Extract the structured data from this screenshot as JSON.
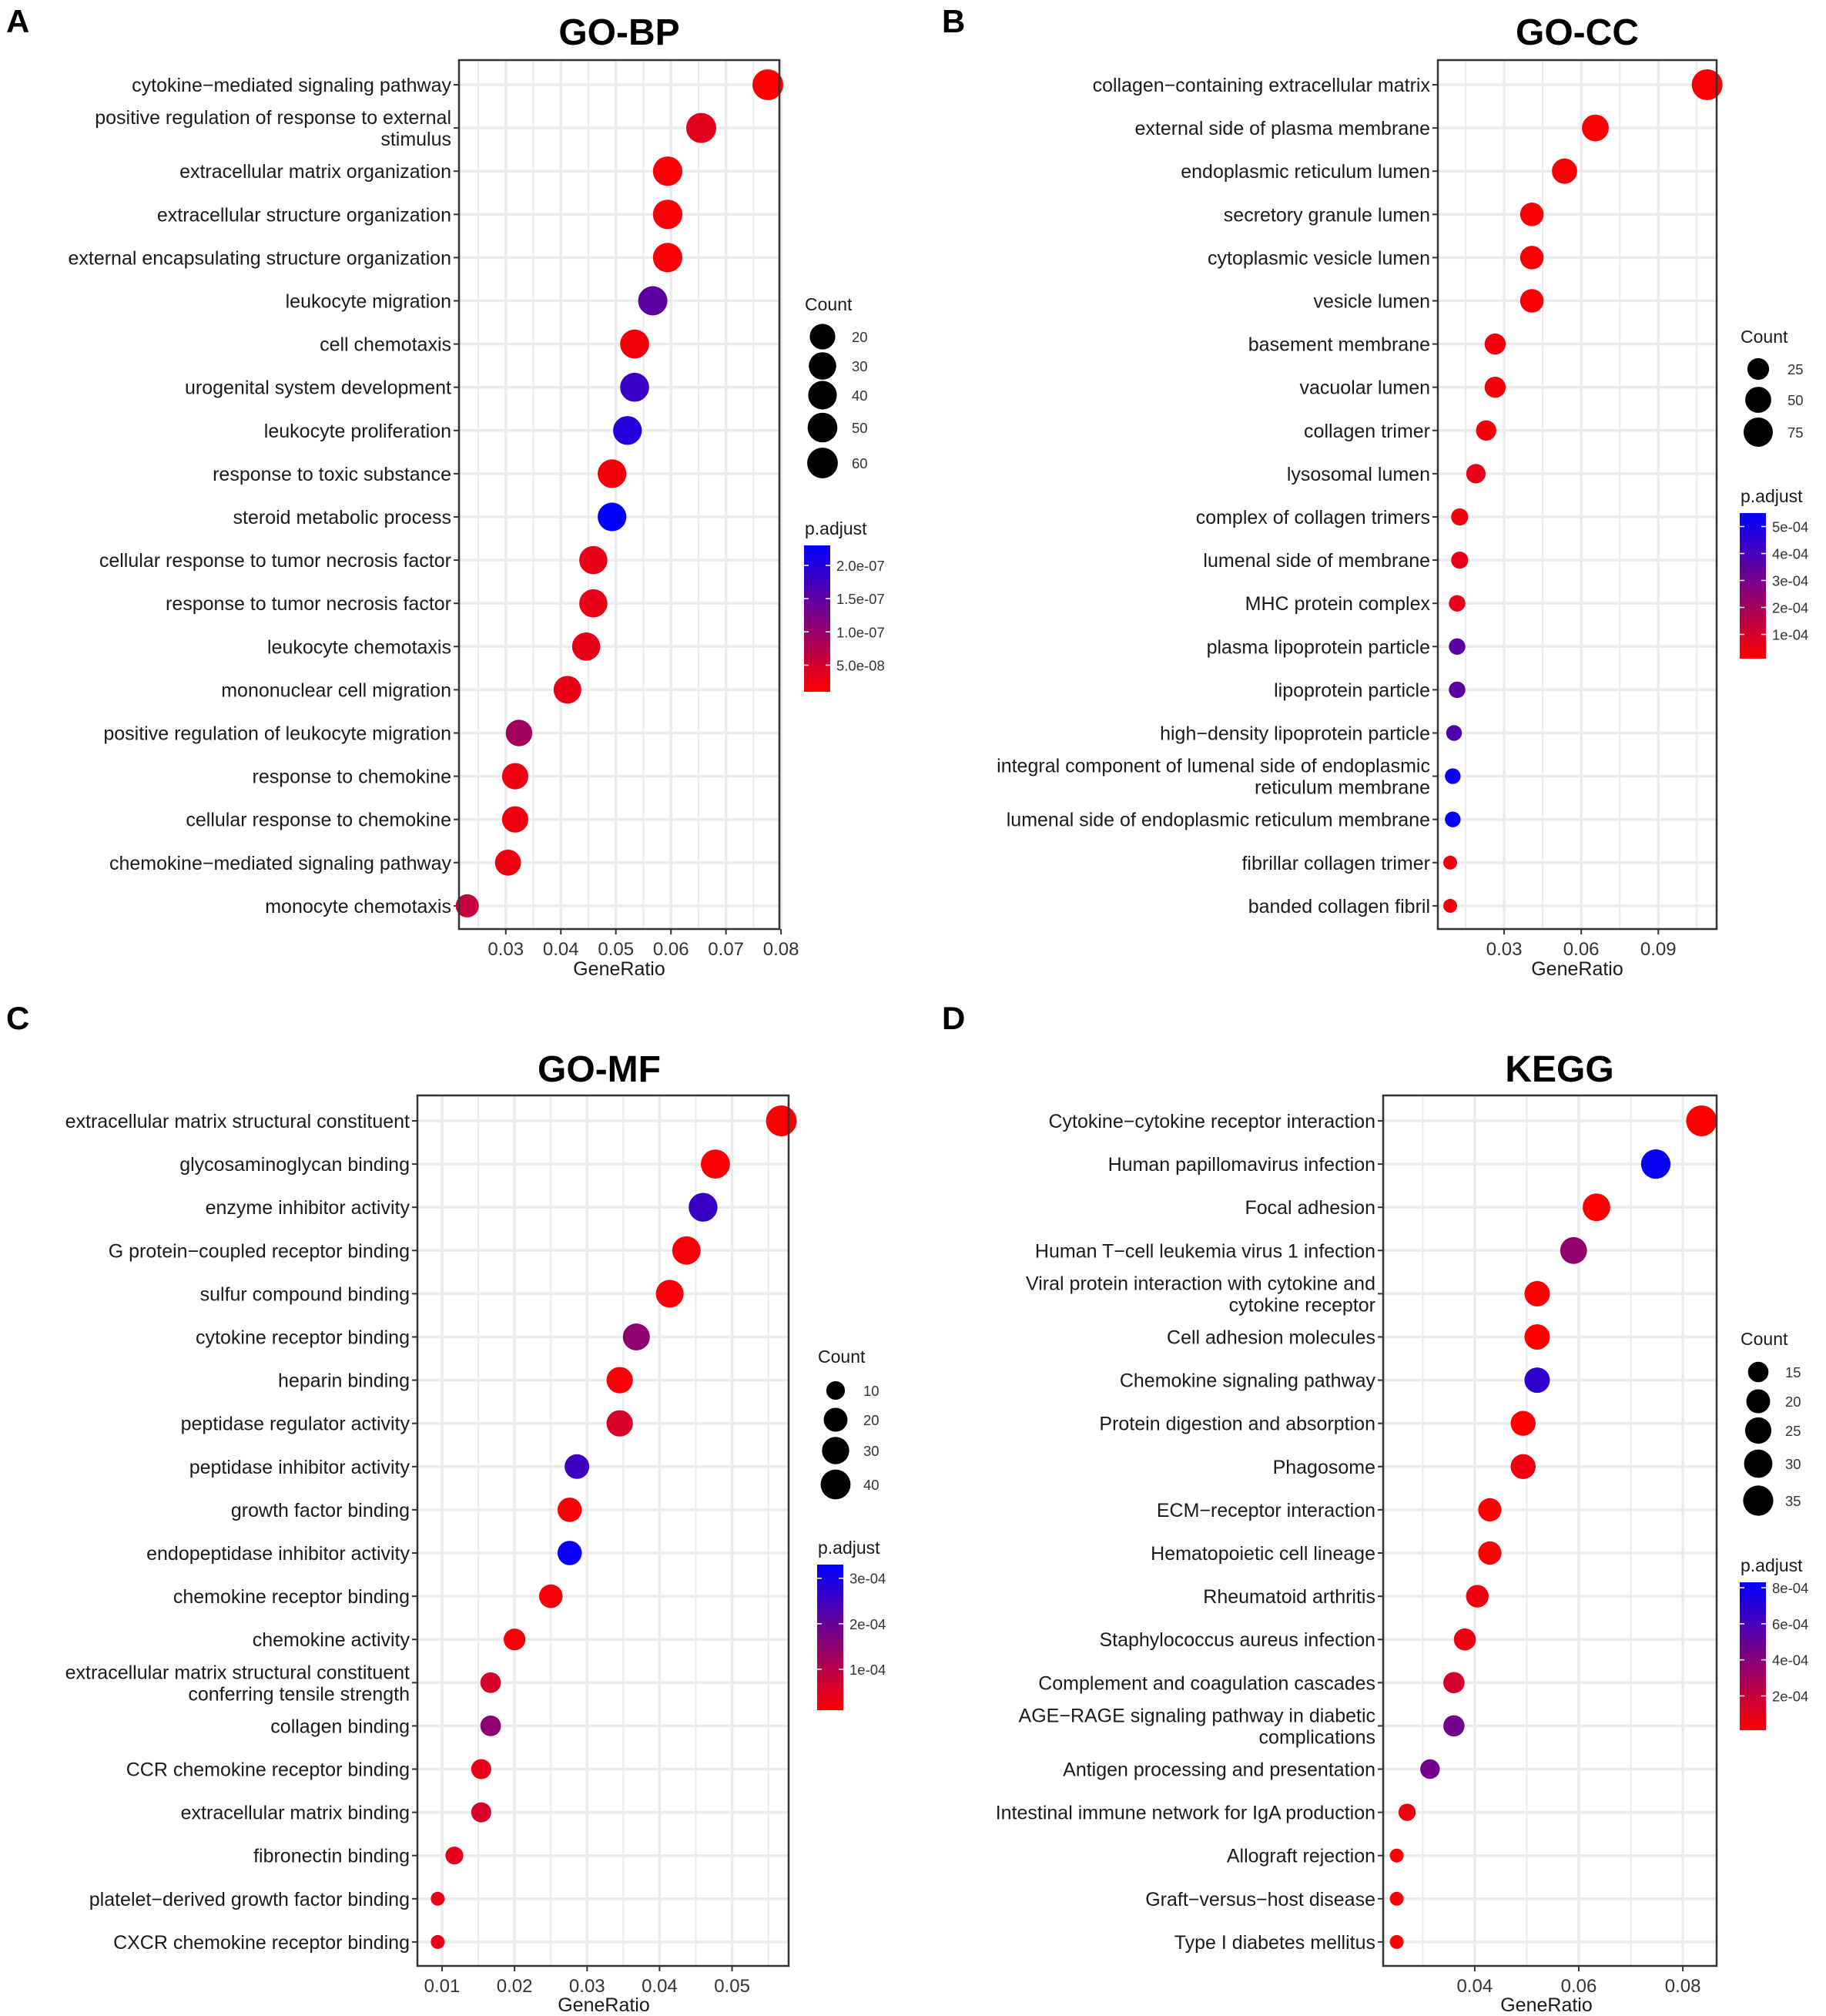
{
  "figure": {
    "colors": {
      "low": "#ff0000",
      "high": "#0000ff",
      "grid": "#ebebeb",
      "frame": "#333333"
    }
  },
  "chart_data": [
    {
      "type": "scatter",
      "panel": "A",
      "title": "GO-BP",
      "xlabel": "GeneRatio",
      "xticks": [
        "0.03",
        "0.04",
        "0.05",
        "0.06",
        "0.07",
        "0.08"
      ],
      "xlim": [
        0.0215,
        0.0797
      ],
      "size_legend": {
        "title": "Count",
        "labels": [
          "20",
          "30",
          "40",
          "50",
          "60"
        ],
        "values": [
          20,
          30,
          40,
          50,
          60
        ]
      },
      "color_legend": {
        "title": "p.adjust",
        "labels": [
          "2.0e-07",
          "1.5e-07",
          "1.0e-07",
          "5.0e-08"
        ],
        "values": [
          2e-07,
          1.5e-07,
          1e-07,
          5e-08
        ],
        "range": [
          1e-08,
          2.3e-07
        ]
      },
      "terms": [
        [
          "cytokine−mediated signaling pathway"
        ],
        [
          "positive regulation of response to external",
          "stimulus"
        ],
        [
          "extracellular matrix organization"
        ],
        [
          "extracellular structure organization"
        ],
        [
          "external encapsulating structure organization"
        ],
        [
          "leukocyte migration"
        ],
        [
          "cell chemotaxis"
        ],
        [
          "urogenital system development"
        ],
        [
          "leukocyte proliferation"
        ],
        [
          "response to toxic substance"
        ],
        [
          "steroid metabolic process"
        ],
        [
          "cellular response to tumor necrosis factor"
        ],
        [
          "response to tumor necrosis factor"
        ],
        [
          "leukocyte chemotaxis"
        ],
        [
          "mononuclear cell migration"
        ],
        [
          "positive regulation of leukocyte migration"
        ],
        [
          "response to chemokine"
        ],
        [
          "cellular response to chemokine"
        ],
        [
          "chemokine−mediated signaling pathway"
        ],
        [
          "monocyte chemotaxis"
        ]
      ],
      "gene_ratio": [
        0.0776,
        0.0655,
        0.0594,
        0.0594,
        0.0594,
        0.0567,
        0.0534,
        0.0534,
        0.0521,
        0.0493,
        0.0493,
        0.0459,
        0.0459,
        0.0446,
        0.0412,
        0.0324,
        0.0317,
        0.0317,
        0.0304,
        0.023
      ],
      "count": [
        62,
        53,
        47,
        47,
        47,
        45,
        42,
        42,
        41,
        39,
        39,
        36,
        36,
        35,
        32,
        24,
        23,
        23,
        22,
        15
      ],
      "p_adjust": [
        1.2e-08,
        3.5e-08,
        1.5e-08,
        1.5e-08,
        1.5e-08,
        1.5e-07,
        2e-08,
        1.8e-07,
        2e-07,
        2e-08,
        2.3e-07,
        3e-08,
        3e-08,
        3e-08,
        3e-08,
        9e-08,
        2.5e-08,
        2.5e-08,
        2.5e-08,
        6e-08
      ]
    },
    {
      "type": "scatter",
      "panel": "B",
      "title": "GO-CC",
      "xlabel": "GeneRatio",
      "xticks": [
        "0.03",
        "0.06",
        "0.09"
      ],
      "xlim": [
        0.0042,
        0.1127
      ],
      "size_legend": {
        "title": "Count",
        "labels": [
          "25",
          "50",
          "75"
        ],
        "values": [
          25,
          50,
          75
        ]
      },
      "color_legend": {
        "title": "p.adjust",
        "labels": [
          "5e-04",
          "4e-04",
          "3e-04",
          "2e-04",
          "1e-04"
        ],
        "values": [
          0.0005,
          0.0004,
          0.0003,
          0.0002,
          0.0001
        ],
        "range": [
          1e-05,
          0.00055
        ]
      },
      "terms": [
        [
          "collagen−containing extracellular matrix"
        ],
        [
          "external side of plasma membrane"
        ],
        [
          "endoplasmic reticulum lumen"
        ],
        [
          "secretory granule lumen"
        ],
        [
          "cytoplasmic vesicle lumen"
        ],
        [
          "vesicle lumen"
        ],
        [
          "basement membrane"
        ],
        [
          "vacuolar lumen"
        ],
        [
          "collagen trimer"
        ],
        [
          "lysosomal lumen"
        ],
        [
          "complex of collagen trimers"
        ],
        [
          "lumenal side of membrane"
        ],
        [
          "MHC protein complex"
        ],
        [
          "plasma lipoprotein particle"
        ],
        [
          "lipoprotein particle"
        ],
        [
          "high−density lipoprotein particle"
        ],
        [
          "integral component of lumenal side of endoplasmic",
          "reticulum membrane"
        ],
        [
          "lumenal side of endoplasmic reticulum membrane"
        ],
        [
          "fibrillar collagen trimer"
        ],
        [
          "banded collagen fibril"
        ]
      ],
      "gene_ratio": [
        0.109,
        0.0655,
        0.0535,
        0.0408,
        0.0408,
        0.0408,
        0.0265,
        0.0265,
        0.023,
        0.019,
        0.0127,
        0.0127,
        0.0117,
        0.0117,
        0.0117,
        0.0105,
        0.01,
        0.01,
        0.009,
        0.009
      ],
      "count": [
        90,
        55,
        45,
        34,
        34,
        34,
        22,
        22,
        19,
        16,
        10,
        10,
        9,
        9,
        9,
        8,
        8,
        8,
        7,
        7
      ],
      "p_adjust": [
        2e-05,
        2e-05,
        2e-05,
        2e-05,
        2e-05,
        2e-05,
        4e-05,
        4e-05,
        4e-05,
        6e-05,
        4e-05,
        6e-05,
        6e-05,
        0.00036,
        0.00036,
        0.00038,
        0.00053,
        0.00053,
        4e-05,
        4e-05
      ]
    },
    {
      "type": "scatter",
      "panel": "C",
      "title": "GO-MF",
      "xlabel": "GeneRatio",
      "xticks": [
        "0.01",
        "0.02",
        "0.03",
        "0.04",
        "0.05"
      ],
      "xlim": [
        0.0066,
        0.0578
      ],
      "size_legend": {
        "title": "Count",
        "labels": [
          "10",
          "20",
          "30",
          "40"
        ],
        "values": [
          10,
          20,
          30,
          40
        ]
      },
      "color_legend": {
        "title": "p.adjust",
        "labels": [
          "3e-04",
          "2e-04",
          "1e-04"
        ],
        "values": [
          0.0003,
          0.0002,
          0.0001
        ],
        "range": [
          1e-05,
          0.00033
        ]
      },
      "terms": [
        [
          "extracellular matrix structural constituent"
        ],
        [
          "glycosaminoglycan binding"
        ],
        [
          "enzyme inhibitor activity"
        ],
        [
          "G protein−coupled receptor binding"
        ],
        [
          "sulfur compound binding"
        ],
        [
          "cytokine receptor binding"
        ],
        [
          "heparin binding"
        ],
        [
          "peptidase regulator activity"
        ],
        [
          "peptidase inhibitor activity"
        ],
        [
          "growth factor binding"
        ],
        [
          "endopeptidase inhibitor activity"
        ],
        [
          "chemokine receptor binding"
        ],
        [
          "chemokine activity"
        ],
        [
          "extracellular matrix structural constituent",
          "conferring tensile strength"
        ],
        [
          "collagen binding"
        ],
        [
          "CCR chemokine receptor binding"
        ],
        [
          "extracellular matrix binding"
        ],
        [
          "fibronectin binding"
        ],
        [
          "platelet−derived growth factor binding"
        ],
        [
          "CXCR chemokine receptor binding"
        ]
      ],
      "gene_ratio": [
        0.0568,
        0.0477,
        0.046,
        0.0437,
        0.0414,
        0.0368,
        0.0345,
        0.0345,
        0.0286,
        0.0276,
        0.0276,
        0.025,
        0.02,
        0.0167,
        0.0167,
        0.0154,
        0.0154,
        0.0117,
        0.0094,
        0.0094
      ],
      "count": [
        44,
        37,
        36,
        34,
        32,
        29,
        27,
        27,
        22,
        21,
        21,
        19,
        15,
        13,
        13,
        12,
        12,
        9,
        7,
        7
      ],
      "p_adjust": [
        1.5e-05,
        1.5e-05,
        0.00026,
        2e-05,
        2e-05,
        0.00015,
        2e-05,
        6e-05,
        0.00025,
        2e-05,
        0.00032,
        2e-05,
        2e-05,
        6e-05,
        0.00015,
        4e-05,
        6e-05,
        4e-05,
        4e-05,
        4e-05
      ]
    },
    {
      "type": "scatter",
      "panel": "D",
      "title": "KEGG",
      "xlabel": "GeneRatio",
      "xticks": [
        "0.04",
        "0.06",
        "0.08"
      ],
      "xlim": [
        0.0224,
        0.0865
      ],
      "size_legend": {
        "title": "Count",
        "labels": [
          "15",
          "20",
          "25",
          "30",
          "35"
        ],
        "values": [
          15,
          20,
          25,
          30,
          35
        ]
      },
      "color_legend": {
        "title": "p.adjust",
        "labels": [
          "8e-04",
          "6e-04",
          "4e-04",
          "2e-04"
        ],
        "values": [
          0.0008,
          0.0006,
          0.0004,
          0.0002
        ],
        "range": [
          1e-05,
          0.00083
        ]
      },
      "terms": [
        [
          "Cytokine−cytokine receptor interaction"
        ],
        [
          "Human papillomavirus infection"
        ],
        [
          "Focal adhesion"
        ],
        [
          "Human T−cell leukemia virus 1 infection"
        ],
        [
          "Viral protein interaction with cytokine and",
          "cytokine receptor"
        ],
        [
          "Cell adhesion molecules"
        ],
        [
          "Chemokine signaling pathway"
        ],
        [
          "Protein digestion and absorption"
        ],
        [
          "Phagosome"
        ],
        [
          "ECM−receptor interaction"
        ],
        [
          "Hematopoietic cell lineage"
        ],
        [
          "Rheumatoid arthritis"
        ],
        [
          "Staphylococcus aureus infection"
        ],
        [
          "Complement and coagulation cascades"
        ],
        [
          "AGE−RAGE signaling pathway in diabetic",
          "complications"
        ],
        [
          "Antigen processing and presentation"
        ],
        [
          "Intestinal immune network for IgA production"
        ],
        [
          "Allograft rejection"
        ],
        [
          "Graft−versus−host disease"
        ],
        [
          "Type I diabetes mellitus"
        ]
      ],
      "gene_ratio": [
        0.0836,
        0.0748,
        0.0634,
        0.059,
        0.052,
        0.052,
        0.052,
        0.0493,
        0.0493,
        0.0429,
        0.0429,
        0.0405,
        0.0381,
        0.036,
        0.036,
        0.0314,
        0.027,
        0.025,
        0.025,
        0.025
      ],
      "count": [
        37,
        33,
        28,
        26,
        23,
        23,
        23,
        22,
        22,
        19,
        19,
        18,
        17,
        16,
        16,
        14,
        12,
        11,
        11,
        11
      ],
      "p_adjust": [
        1e-05,
        0.0008,
        1e-05,
        0.00036,
        1e-05,
        1e-05,
        0.00068,
        1e-05,
        6e-05,
        1e-05,
        1e-05,
        6e-05,
        6e-05,
        0.00015,
        0.00046,
        0.00046,
        6e-05,
        1e-05,
        1e-05,
        1e-05
      ]
    }
  ]
}
